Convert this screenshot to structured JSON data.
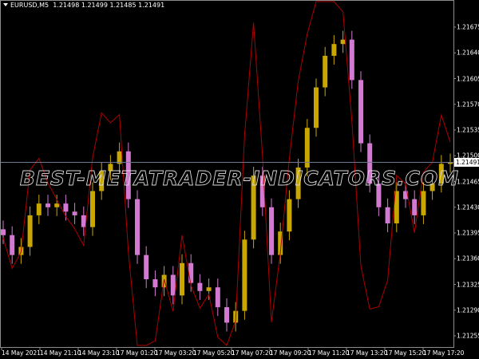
{
  "header": {
    "symbol": "EURUSD,M5",
    "ohlc": "1.21498 1.21499 1.21485 1.21491"
  },
  "watermark": "BEST-METATRADER-INDICATORS.COM",
  "colors": {
    "background": "#000000",
    "bull": "#c8a800",
    "bear": "#d27ad2",
    "indicator_line": "#b00000",
    "price_line": "#6c7890",
    "axis": "#8c8c8c"
  },
  "chart_data": {
    "type": "candlestick",
    "symbol": "EURUSD",
    "timeframe": "M5",
    "current_price": "1.21491",
    "ylim": [
      1.2124,
      1.2171
    ],
    "y_ticks": [
      "1.21675",
      "1.21640",
      "1.21605",
      "1.21570",
      "1.21535",
      "1.21500",
      "1.21465",
      "1.21430",
      "1.21395",
      "1.21360",
      "1.21325",
      "1.21290",
      "1.21255"
    ],
    "x_ticks": [
      "14 May 2021",
      "14 May 21:10",
      "14 May 23:10",
      "17 May 01:20",
      "17 May 03:20",
      "17 May 05:20",
      "17 May 07:20",
      "17 May 09:20",
      "17 May 11:20",
      "17 May 13:20",
      "17 May 15:20",
      "17 May 17:20"
    ],
    "closes": [
      1.21392,
      1.21365,
      1.21376,
      1.21419,
      1.21435,
      1.2143,
      1.21435,
      1.21424,
      1.21419,
      1.21403,
      1.21452,
      1.21479,
      1.21489,
      1.21506,
      1.21441,
      1.21365,
      1.21332,
      1.21321,
      1.21338,
      1.2131,
      1.21354,
      1.21327,
      1.21316,
      1.21321,
      1.21294,
      1.21273,
      1.21289,
      1.21386,
      1.21473,
      1.2143,
      1.21365,
      1.21397,
      1.21441,
      1.21484,
      1.21538,
      1.21593,
      1.21636,
      1.21652,
      1.21658,
      1.21603,
      1.21517,
      1.21462,
      1.2143,
      1.21408,
      1.21452,
      1.21441,
      1.21419,
      1.21452,
      1.21462,
      1.21489,
      1.21491
    ]
  }
}
